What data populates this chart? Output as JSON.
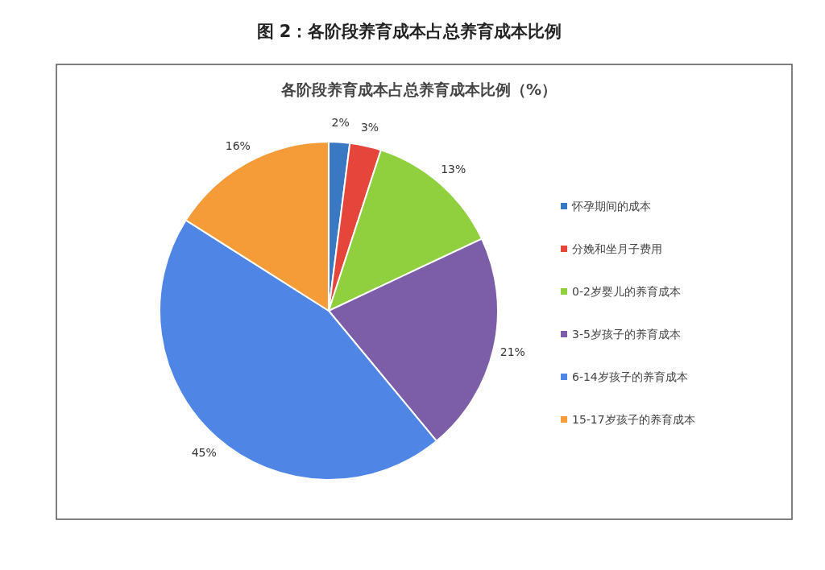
{
  "chart_data": {
    "type": "pie",
    "title": "图 2：各阶段养育成本占总养育成本比例",
    "subtitle": "各阶段养育成本占总养育成本比例（%）",
    "categories": [
      "怀孕期间的成本",
      "分娩和坐月子费用",
      "0-2岁婴儿的养育成本",
      "3-5岁孩子的养育成本",
      "6-14岁孩子的养育成本",
      "15-17岁孩子的养育成本"
    ],
    "values": [
      2,
      3,
      13,
      21,
      45,
      16
    ],
    "value_labels": [
      "2%",
      "3%",
      "13%",
      "21%",
      "45%",
      "16%"
    ],
    "colors": [
      "#3b78c4",
      "#e5453b",
      "#90cf3e",
      "#7b5ea7",
      "#4f86e6",
      "#f59b37"
    ],
    "legend": "right"
  }
}
